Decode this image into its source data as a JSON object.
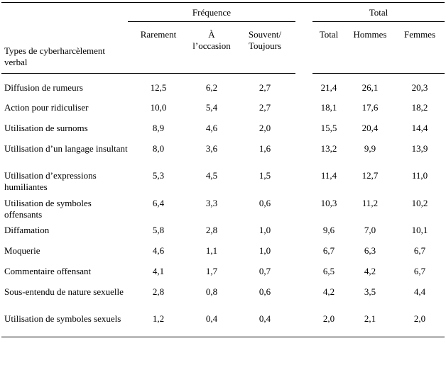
{
  "table": {
    "group_headers": {
      "frequence": "Fréquence",
      "total": "Total"
    },
    "row_header_label": "Types de cyberharcèlement verbal",
    "columns": {
      "rarement": "Rarement",
      "occasion": "À l’occasion",
      "souvent": "Souvent/ Toujours",
      "total": "Total",
      "hommes": "Hommes",
      "femmes": "Femmes"
    },
    "rows": [
      {
        "label": "Diffusion de rumeurs",
        "rarement": "12,5",
        "occasion": "6,2",
        "souvent": "2,7",
        "total": "21,4",
        "hommes": "26,1",
        "femmes": "20,3"
      },
      {
        "label": "Action pour ridiculiser",
        "rarement": "10,0",
        "occasion": "5,4",
        "souvent": "2,7",
        "total": "18,1",
        "hommes": "17,6",
        "femmes": "18,2"
      },
      {
        "label": "Utilisation de surnoms",
        "rarement": "8,9",
        "occasion": "4,6",
        "souvent": "2,0",
        "total": "15,5",
        "hommes": "20,4",
        "femmes": "14,4"
      },
      {
        "label": "Utilisation d’un langage insultant",
        "rarement": "8,0",
        "occasion": "3,6",
        "souvent": "1,6",
        "total": "13,2",
        "hommes": "9,9",
        "femmes": "13,9"
      },
      {
        "label": "Utilisation d’expressions humiliantes",
        "rarement": "5,3",
        "occasion": "4,5",
        "souvent": "1,5",
        "total": "11,4",
        "hommes": "12,7",
        "femmes": "11,0"
      },
      {
        "label": "Utilisation de symboles offensants",
        "rarement": "6,4",
        "occasion": "3,3",
        "souvent": "0,6",
        "total": "10,3",
        "hommes": "11,2",
        "femmes": "10,2"
      },
      {
        "label": "Diffamation",
        "rarement": "5,8",
        "occasion": "2,8",
        "souvent": "1,0",
        "total": "9,6",
        "hommes": "7,0",
        "femmes": "10,1"
      },
      {
        "label": "Moquerie",
        "rarement": "4,6",
        "occasion": "1,1",
        "souvent": "1,0",
        "total": "6,7",
        "hommes": "6,3",
        "femmes": "6,7"
      },
      {
        "label": "Commentaire offensant",
        "rarement": "4,1",
        "occasion": "1,7",
        "souvent": "0,7",
        "total": "6,5",
        "hommes": "4,2",
        "femmes": "6,7"
      },
      {
        "label": "Sous-entendu de nature sexuelle",
        "rarement": "2,8",
        "occasion": "0,8",
        "souvent": "0,6",
        "total": "4,2",
        "hommes": "3,5",
        "femmes": "4,4"
      },
      {
        "label": "Utilisation de symboles sexuels",
        "rarement": "1,2",
        "occasion": "0,4",
        "souvent": "0,4",
        "total": "2,0",
        "hommes": "2,1",
        "femmes": "2,0"
      }
    ]
  }
}
